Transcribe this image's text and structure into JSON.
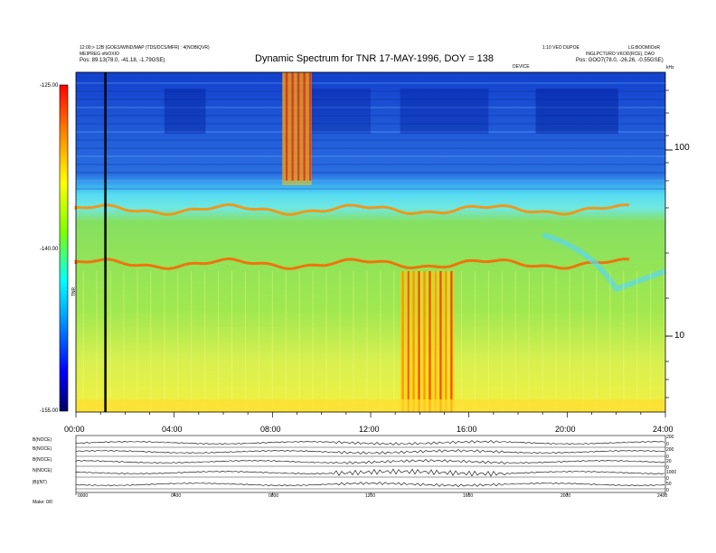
{
  "header": {
    "left_line1": "12:00:> 12B (GOES/WIND/MAP (TDS/DCS/MFR) : 4(NOBIQVR)",
    "left_line2": "MEIPREG ofoOXIO",
    "left_line3": "Pos:   89.13(78.0, -41.18, -1.79GSE)",
    "right_line1": "1:10 VEO DUPOE",
    "right_line1b": "LG:BOOMIOoR",
    "right_line2": "INGLPCTURO VKOD(RCE), DAO",
    "right_line3": "Pos:   GOO7(78.0, -26.26, -0.55GSE)",
    "mid_small": "DEVICE",
    "khz_label": "kHz"
  },
  "chart_data": {
    "type": "heatmap",
    "title": "Dynamic Spectrum for TNR 17-MAY-1996, DOY = 138",
    "x_ticks": [
      "00:00",
      "04:00",
      "08:00",
      "12:00",
      "16:00",
      "20:00",
      "24:00"
    ],
    "x_range_hours": [
      0,
      24
    ],
    "y_right_ticks": [
      "100",
      "10"
    ],
    "colorbar": {
      "ticks": [
        "-125.00",
        "-140.00",
        "-155.00"
      ],
      "range": [
        -155,
        -125
      ],
      "label": "TNR",
      "colors": [
        "#000066",
        "#0000ff",
        "#00aaff",
        "#00ffff",
        "#7fff00",
        "#ffff00",
        "#ff8800",
        "#ff0000"
      ]
    },
    "bands": [
      {
        "name": "background-high",
        "color": "#1a4fd0"
      },
      {
        "name": "cyan-band",
        "color": "#5ad8f0"
      },
      {
        "name": "green-band",
        "color": "#8ee04a"
      },
      {
        "name": "yellow-low",
        "color": "#e8f050"
      }
    ],
    "bursts_hours": [
      [
        8.4,
        9.6
      ],
      [
        13.2,
        15.4
      ]
    ],
    "marker_line_hour": 1.2
  },
  "bottom_panel": {
    "panel_labels": [
      "B(NOCE)",
      "B(NOCE)",
      "B(NOCE)",
      "N(NOCE)",
      "|B|(NT)"
    ],
    "right_ticks": [
      "200",
      "0",
      "200",
      "0",
      "20",
      "0",
      "1000",
      "0",
      "50",
      "0"
    ],
    "x_ticks": [
      "0000",
      "0400",
      "0800",
      "1200",
      "1600",
      "2000",
      "2400"
    ],
    "footer": "Make: 0/0"
  }
}
